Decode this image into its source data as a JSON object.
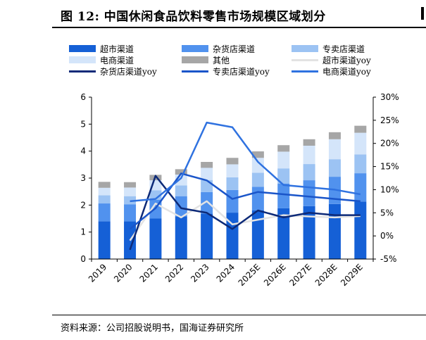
{
  "figure": {
    "title": "图 12:  中国休闲食品饮料零售市场规模区域划分",
    "source": "资料来源：公司招股说明书，国海证券研究所"
  },
  "colors": {
    "supermarket": "#1560d6",
    "grocery": "#5192ee",
    "specialty": "#9cc3f3",
    "ecommerce": "#d4e5fa",
    "other": "#a6a6a6",
    "supermarket_yoy": "#e3e3e3",
    "grocery_yoy": "#0d2a78",
    "specialty_yoy": "#1a55c9",
    "ecommerce_yoy": "#2f72e0"
  },
  "chart_data": {
    "type": "bar",
    "stacked": true,
    "categories": [
      "2019",
      "2020",
      "2021",
      "2022",
      "2023",
      "2024",
      "2025E",
      "2026E",
      "2027E",
      "2028E",
      "2029E"
    ],
    "series": [
      {
        "name": "超市渠道",
        "kind": "bar",
        "axis": "left",
        "color_key": "supermarket",
        "values": [
          1.4,
          1.4,
          1.5,
          1.58,
          1.68,
          1.72,
          1.8,
          1.88,
          1.96,
          2.04,
          2.13
        ]
      },
      {
        "name": "杂货店渠道",
        "kind": "bar",
        "axis": "left",
        "color_key": "grocery",
        "values": [
          0.66,
          0.63,
          0.7,
          0.75,
          0.8,
          0.84,
          0.88,
          0.92,
          0.96,
          1.01,
          1.05
        ]
      },
      {
        "name": "专卖店渠道",
        "kind": "bar",
        "axis": "left",
        "color_key": "specialty",
        "values": [
          0.3,
          0.3,
          0.35,
          0.4,
          0.45,
          0.47,
          0.52,
          0.56,
          0.6,
          0.65,
          0.7
        ]
      },
      {
        "name": "电商渠道",
        "kind": "bar",
        "axis": "left",
        "color_key": "ecommerce",
        "values": [
          0.28,
          0.32,
          0.37,
          0.4,
          0.45,
          0.48,
          0.55,
          0.62,
          0.68,
          0.74,
          0.8
        ]
      },
      {
        "name": "其他",
        "kind": "bar",
        "axis": "left",
        "color_key": "other",
        "values": [
          0.22,
          0.2,
          0.2,
          0.2,
          0.22,
          0.24,
          0.24,
          0.24,
          0.24,
          0.26,
          0.26
        ]
      },
      {
        "name": "超市渠道yoy",
        "kind": "line",
        "axis": "right",
        "color_key": "supermarket_yoy",
        "values": [
          null,
          -1.0,
          7.0,
          4.0,
          7.5,
          2.5,
          3.5,
          4.5,
          4.2,
          4.0,
          4.3
        ]
      },
      {
        "name": "杂货店渠道yoy",
        "kind": "line",
        "axis": "right",
        "color_key": "grocery_yoy",
        "values": [
          null,
          -3.0,
          13.0,
          6.0,
          5.0,
          1.5,
          5.5,
          4.0,
          5.0,
          4.5,
          4.5
        ]
      },
      {
        "name": "专卖店渠道yoy",
        "kind": "line",
        "axis": "right",
        "color_key": "specialty_yoy",
        "values": [
          null,
          1.5,
          6.0,
          13.5,
          12.0,
          8.0,
          9.5,
          9.0,
          8.5,
          8.0,
          7.5
        ]
      },
      {
        "name": "电商渠道yoy",
        "kind": "line",
        "axis": "right",
        "color_key": "ecommerce_yoy",
        "values": [
          null,
          7.5,
          8.0,
          12.5,
          24.5,
          23.5,
          16.0,
          11.0,
          10.5,
          10.0,
          9.0
        ]
      }
    ],
    "y_left": {
      "min": 0,
      "max": 6,
      "ticks": [
        "0",
        "1",
        "2",
        "3",
        "4",
        "5",
        "6"
      ]
    },
    "y_right": {
      "min": -5,
      "max": 30,
      "ticks": [
        "-5%",
        "0%",
        "5%",
        "10%",
        "15%",
        "20%",
        "25%",
        "30%"
      ]
    },
    "legend_position": "top",
    "grid": false
  }
}
